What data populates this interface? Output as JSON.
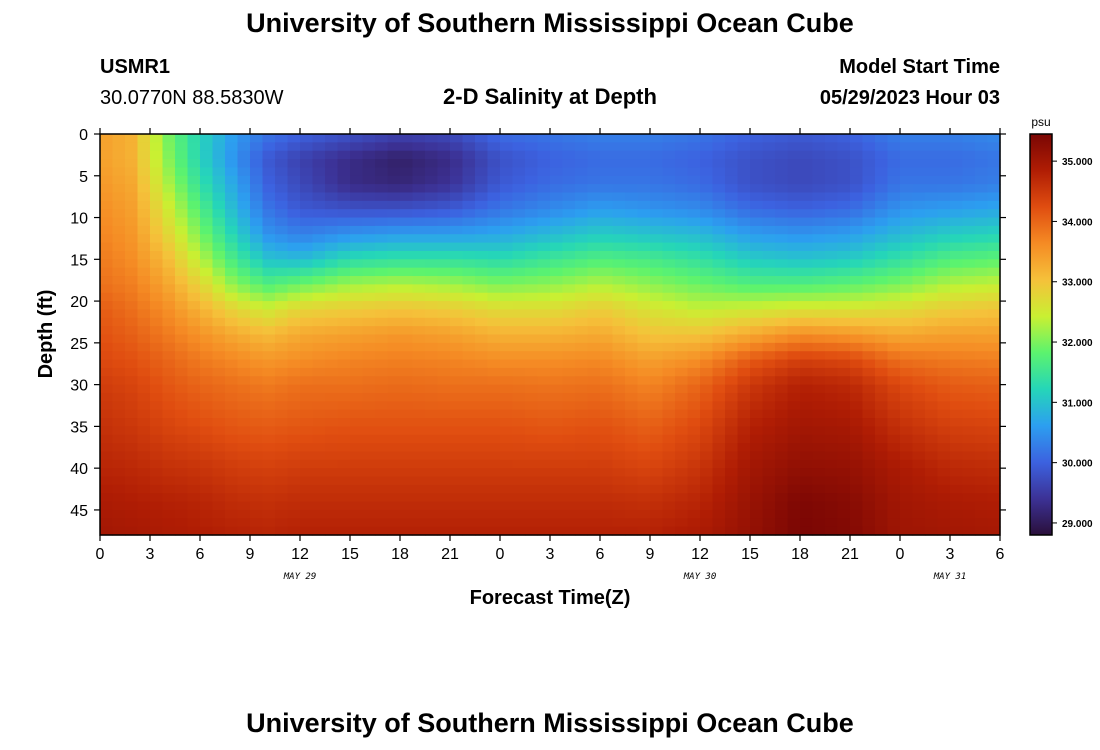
{
  "page": {
    "title": "University of Southern Mississippi Ocean Cube",
    "footer_title": "University of Southern Mississippi Ocean Cube",
    "station_id": "USMR1",
    "coords": "30.0770N  88.5830W",
    "subtitle": "2-D Salinity at Depth",
    "start_label": "Model Start Time",
    "start_value": "05/29/2023 Hour 03"
  },
  "chart_data": {
    "type": "heatmap",
    "title": "2-D Salinity at Depth",
    "xlabel": "Forecast Time(Z)",
    "ylabel": "Depth (ft)",
    "x_range_hours": [
      0,
      54
    ],
    "x_ticks": [
      {
        "h": 0,
        "label": "0"
      },
      {
        "h": 3,
        "label": "3"
      },
      {
        "h": 6,
        "label": "6"
      },
      {
        "h": 9,
        "label": "9"
      },
      {
        "h": 12,
        "label": "12"
      },
      {
        "h": 15,
        "label": "15"
      },
      {
        "h": 18,
        "label": "18"
      },
      {
        "h": 21,
        "label": "21"
      },
      {
        "h": 24,
        "label": "0"
      },
      {
        "h": 27,
        "label": "3"
      },
      {
        "h": 30,
        "label": "6"
      },
      {
        "h": 33,
        "label": "9"
      },
      {
        "h": 36,
        "label": "12"
      },
      {
        "h": 39,
        "label": "15"
      },
      {
        "h": 42,
        "label": "18"
      },
      {
        "h": 45,
        "label": "21"
      },
      {
        "h": 48,
        "label": "0"
      },
      {
        "h": 51,
        "label": "3"
      },
      {
        "h": 54,
        "label": "6"
      }
    ],
    "date_labels": [
      {
        "h": 12,
        "label": "MAY 29"
      },
      {
        "h": 36,
        "label": "MAY 30"
      },
      {
        "h": 51,
        "label": "MAY 31"
      }
    ],
    "y_range_ft": [
      0,
      48
    ],
    "y_ticks": [
      0,
      5,
      10,
      15,
      20,
      25,
      30,
      35,
      40,
      45
    ],
    "colorbar": {
      "unit": "psu",
      "range": [
        28.8,
        35.45
      ],
      "ticks": [
        {
          "v": 35.0,
          "label": "35.000"
        },
        {
          "v": 34.0,
          "label": "34.000"
        },
        {
          "v": 33.0,
          "label": "33.000"
        },
        {
          "v": 32.0,
          "label": "32.000"
        },
        {
          "v": 31.0,
          "label": "31.000"
        },
        {
          "v": 30.0,
          "label": "30.000"
        },
        {
          "v": 29.0,
          "label": "29.000"
        }
      ],
      "stops": [
        "#2a0f3a",
        "#3c3296",
        "#3c62e0",
        "#2c9ff0",
        "#25d6b8",
        "#5cf36e",
        "#c9f032",
        "#f5c13a",
        "#f58b24",
        "#e04d10",
        "#b01d04",
        "#7a0604"
      ]
    },
    "time_keys_hours": [
      0,
      2,
      4,
      6,
      8,
      10,
      12,
      15,
      18,
      21,
      24,
      27,
      30,
      33,
      36,
      39,
      42,
      45,
      48,
      51,
      54
    ],
    "depth_keys_ft": [
      0,
      3,
      6,
      9,
      12,
      15,
      18,
      21,
      24,
      27,
      30,
      35,
      40,
      44,
      48
    ],
    "salinity_grid_psu": [
      [
        33.4,
        33.4,
        33.5,
        33.6,
        33.7,
        33.8,
        33.9,
        34.1,
        34.2,
        34.3,
        34.45,
        34.6,
        34.75,
        34.9,
        35.0
      ],
      [
        33.2,
        33.2,
        33.3,
        33.4,
        33.5,
        33.6,
        33.75,
        33.9,
        34.05,
        34.2,
        34.35,
        34.5,
        34.7,
        34.85,
        34.95
      ],
      [
        32.0,
        32.1,
        32.3,
        32.55,
        32.8,
        33.1,
        33.35,
        33.6,
        33.8,
        34.0,
        34.15,
        34.35,
        34.6,
        34.8,
        34.9
      ],
      [
        31.2,
        31.2,
        31.4,
        31.7,
        32.0,
        32.35,
        32.8,
        33.2,
        33.55,
        33.8,
        34.0,
        34.25,
        34.55,
        34.75,
        34.85
      ],
      [
        30.6,
        30.5,
        30.7,
        30.9,
        31.2,
        31.6,
        32.1,
        32.8,
        33.3,
        33.65,
        33.9,
        34.15,
        34.45,
        34.65,
        34.8
      ],
      [
        30.2,
        29.9,
        30.0,
        30.2,
        30.5,
        31.0,
        31.7,
        32.5,
        33.1,
        33.5,
        33.8,
        34.1,
        34.4,
        34.6,
        34.75
      ],
      [
        30.0,
        29.6,
        29.7,
        29.9,
        30.3,
        30.9,
        31.9,
        32.8,
        33.3,
        33.6,
        33.9,
        34.15,
        34.45,
        34.65,
        34.8
      ],
      [
        29.8,
        29.3,
        29.3,
        29.8,
        30.5,
        31.3,
        32.2,
        32.9,
        33.4,
        33.7,
        33.9,
        34.2,
        34.45,
        34.65,
        34.8
      ],
      [
        29.6,
        29.1,
        29.2,
        29.8,
        30.6,
        31.4,
        32.3,
        33.0,
        33.5,
        33.75,
        33.95,
        34.2,
        34.45,
        34.65,
        34.8
      ],
      [
        29.7,
        29.3,
        29.4,
        29.9,
        30.6,
        31.4,
        32.2,
        32.9,
        33.4,
        33.7,
        33.9,
        34.2,
        34.45,
        34.65,
        34.8
      ],
      [
        30.1,
        29.8,
        29.9,
        30.2,
        30.7,
        31.3,
        32.0,
        32.7,
        33.2,
        33.6,
        33.9,
        34.2,
        34.45,
        34.65,
        34.8
      ],
      [
        30.2,
        30.0,
        30.1,
        30.4,
        30.9,
        31.5,
        32.1,
        32.7,
        33.2,
        33.6,
        33.85,
        34.15,
        34.45,
        34.65,
        34.8
      ],
      [
        30.3,
        30.1,
        30.2,
        30.6,
        31.1,
        31.7,
        32.3,
        32.9,
        33.3,
        33.65,
        33.9,
        34.2,
        34.45,
        34.65,
        34.8
      ],
      [
        30.3,
        30.1,
        30.2,
        30.5,
        31.0,
        31.6,
        32.1,
        32.6,
        33.0,
        33.4,
        33.7,
        34.05,
        34.35,
        34.6,
        34.8
      ],
      [
        30.2,
        30.0,
        30.1,
        30.4,
        30.9,
        31.4,
        31.9,
        32.4,
        33.0,
        33.6,
        34.0,
        34.3,
        34.55,
        34.75,
        34.9
      ],
      [
        30.0,
        29.8,
        29.8,
        30.1,
        30.6,
        31.1,
        31.7,
        32.5,
        33.3,
        34.1,
        34.5,
        34.8,
        35.0,
        35.1,
        35.15
      ],
      [
        29.9,
        29.7,
        29.7,
        30.0,
        30.5,
        31.0,
        31.7,
        32.6,
        33.6,
        34.4,
        34.8,
        35.0,
        35.2,
        35.4,
        35.45
      ],
      [
        30.0,
        29.8,
        29.8,
        30.1,
        30.6,
        31.1,
        31.8,
        32.6,
        33.5,
        34.3,
        34.7,
        34.95,
        35.15,
        35.3,
        35.35
      ],
      [
        30.3,
        30.1,
        30.2,
        30.5,
        30.9,
        31.4,
        32.0,
        32.7,
        33.3,
        33.9,
        34.3,
        34.6,
        34.9,
        35.0,
        35.05
      ],
      [
        30.3,
        30.1,
        30.2,
        30.6,
        31.1,
        31.7,
        32.3,
        32.9,
        33.4,
        33.8,
        34.1,
        34.4,
        34.7,
        34.9,
        35.0
      ],
      [
        30.4,
        30.2,
        30.3,
        30.7,
        31.2,
        31.8,
        32.4,
        33.0,
        33.4,
        33.75,
        34.05,
        34.35,
        34.65,
        34.85,
        34.95
      ]
    ]
  }
}
